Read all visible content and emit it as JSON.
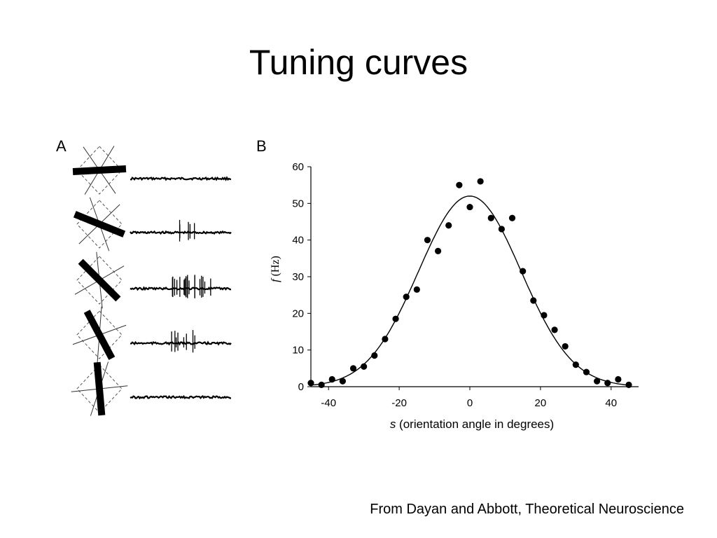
{
  "slide": {
    "title": "Tuning curves",
    "citation": "From Dayan and Abbott, Theoretical Neuroscience"
  },
  "panel_a": {
    "label": "A",
    "stimulus_bar_angles_deg": [
      -3,
      22,
      45,
      62,
      85
    ],
    "spike_bursts": [
      0,
      5,
      18,
      8,
      0
    ]
  },
  "panel_b": {
    "label": "B"
  },
  "chart_data": {
    "type": "scatter",
    "title": "",
    "xlabel_var": "s",
    "xlabel_rest": " (orientation angle in degrees)",
    "ylabel_var": "f",
    "ylabel_rest": " (Hz)",
    "xlim": [
      -45,
      45
    ],
    "ylim": [
      0,
      60
    ],
    "x_ticks": [
      -40,
      -20,
      0,
      20,
      40
    ],
    "y_ticks": [
      0,
      10,
      20,
      30,
      40,
      50,
      60
    ],
    "points": [
      {
        "x": -45,
        "y": 1
      },
      {
        "x": -42,
        "y": 0.5
      },
      {
        "x": -39,
        "y": 2
      },
      {
        "x": -36,
        "y": 1.5
      },
      {
        "x": -33,
        "y": 5
      },
      {
        "x": -30,
        "y": 5.5
      },
      {
        "x": -27,
        "y": 8.5
      },
      {
        "x": -24,
        "y": 13
      },
      {
        "x": -21,
        "y": 18.5
      },
      {
        "x": -18,
        "y": 24.5
      },
      {
        "x": -15,
        "y": 26.5
      },
      {
        "x": -12,
        "y": 40
      },
      {
        "x": -9,
        "y": 37
      },
      {
        "x": -6,
        "y": 44
      },
      {
        "x": -3,
        "y": 55
      },
      {
        "x": 0,
        "y": 49
      },
      {
        "x": 3,
        "y": 56
      },
      {
        "x": 6,
        "y": 46
      },
      {
        "x": 9,
        "y": 43
      },
      {
        "x": 12,
        "y": 46
      },
      {
        "x": 15,
        "y": 31.5
      },
      {
        "x": 18,
        "y": 23.5
      },
      {
        "x": 21,
        "y": 19.5
      },
      {
        "x": 24,
        "y": 15.5
      },
      {
        "x": 27,
        "y": 11
      },
      {
        "x": 30,
        "y": 6
      },
      {
        "x": 33,
        "y": 4
      },
      {
        "x": 36,
        "y": 1.5
      },
      {
        "x": 39,
        "y": 1
      },
      {
        "x": 42,
        "y": 2
      },
      {
        "x": 45,
        "y": 0.5
      }
    ],
    "fit_curve": {
      "type": "gaussian",
      "peak": 52,
      "center": 0,
      "sigma": 14.5
    },
    "grid": false
  }
}
